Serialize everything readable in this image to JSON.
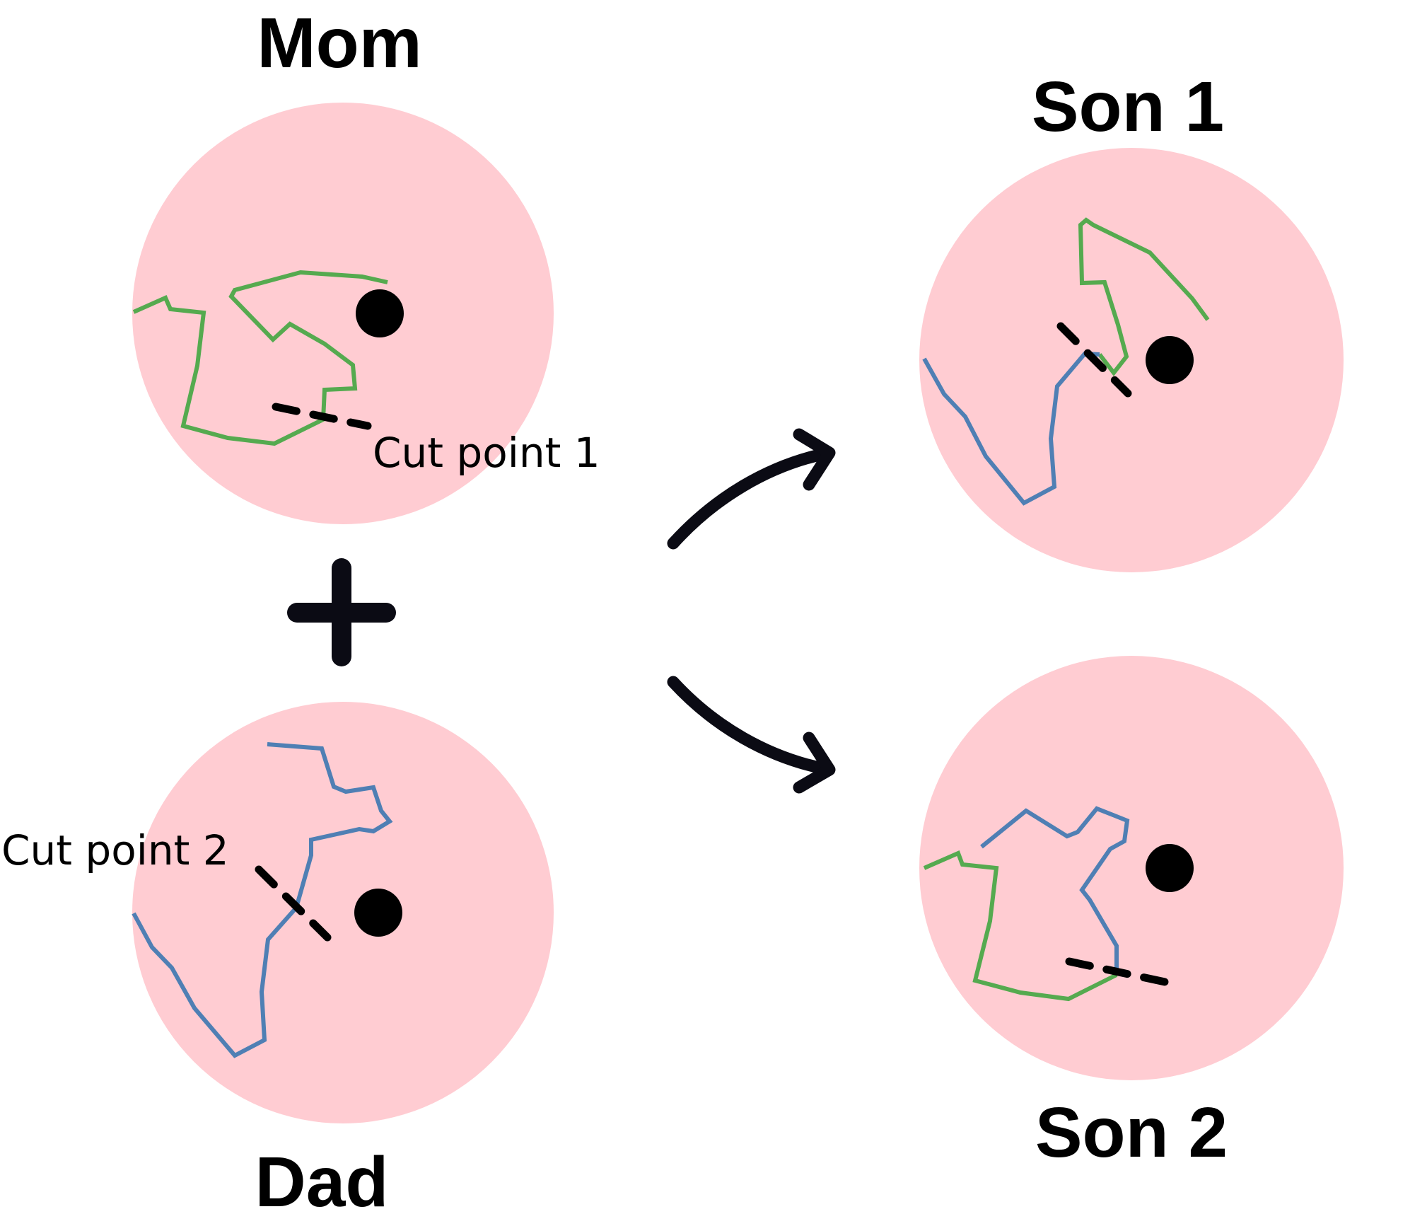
{
  "labels": {
    "mom": "Mom",
    "dad": "Dad",
    "son1": "Son 1",
    "son2": "Son 2",
    "cut1": "Cut point 1",
    "cut2": "Cut point 2"
  },
  "colors": {
    "circle": "#ffccd2",
    "mom_path": "#55aa4f",
    "dad_path": "#4f7fb4",
    "dot": "#000000",
    "arrow": "#0b0b14"
  },
  "icons": {
    "plus": "plus-icon",
    "arrow_up": "curved-arrow-up-right-icon",
    "arrow_down": "curved-arrow-down-right-icon"
  }
}
